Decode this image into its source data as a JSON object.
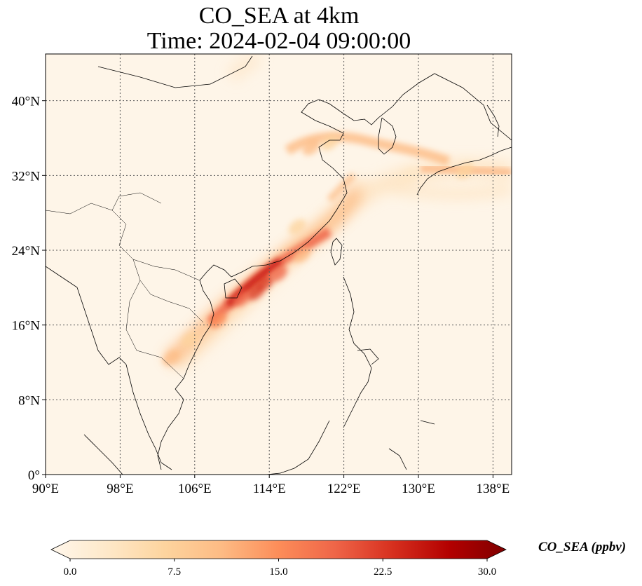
{
  "title": {
    "line1": "CO_SEA at 4km",
    "line2": "Time: 2024-02-04 09:00:00"
  },
  "map": {
    "lon_range": [
      90,
      140
    ],
    "lat_range": [
      0,
      45
    ],
    "lon_ticks": [
      {
        "value": 90,
        "label": "90°E"
      },
      {
        "value": 98,
        "label": "98°E"
      },
      {
        "value": 106,
        "label": "106°E"
      },
      {
        "value": 114,
        "label": "114°E"
      },
      {
        "value": 122,
        "label": "122°E"
      },
      {
        "value": 130,
        "label": "130°E"
      },
      {
        "value": 138,
        "label": "138°E"
      }
    ],
    "lat_ticks": [
      {
        "value": 0,
        "label": "0°"
      },
      {
        "value": 8,
        "label": "8°N"
      },
      {
        "value": 16,
        "label": "16°N"
      },
      {
        "value": 24,
        "label": "24°N"
      },
      {
        "value": 32,
        "label": "32°N"
      },
      {
        "value": 40,
        "label": "40°N"
      }
    ],
    "gridlines": "dotted",
    "plumes": [
      {
        "lon": 113.5,
        "lat": 20.5,
        "level": 24
      },
      {
        "lon": 112.5,
        "lat": 19.5,
        "level": 22
      },
      {
        "lon": 115.0,
        "lat": 21.5,
        "level": 20
      },
      {
        "lon": 111.0,
        "lat": 18.8,
        "level": 18
      },
      {
        "lon": 108.5,
        "lat": 16.5,
        "level": 16
      },
      {
        "lon": 117.5,
        "lat": 23.5,
        "level": 13
      },
      {
        "lon": 105.5,
        "lat": 14.5,
        "level": 9
      },
      {
        "lon": 103.5,
        "lat": 12.5,
        "level": 11
      },
      {
        "lon": 118.5,
        "lat": 35.0,
        "level": 11
      },
      {
        "lon": 120.5,
        "lat": 35.5,
        "level": 8
      },
      {
        "lon": 117.0,
        "lat": 26.5,
        "level": 7
      },
      {
        "lon": 135.0,
        "lat": 32.5,
        "level": 6
      },
      {
        "lon": 129.0,
        "lat": 32.0,
        "level": 4
      }
    ]
  },
  "colorbar": {
    "min": 0.0,
    "max": 30.0,
    "extend": "both",
    "colormap": [
      "#fff7ec",
      "#fee8c8",
      "#fdd49e",
      "#fdbb84",
      "#fc8d59",
      "#ef6548",
      "#d7301f",
      "#b30000",
      "#7f0000"
    ],
    "ticks": [
      {
        "value": 0.0,
        "label": "0.0"
      },
      {
        "value": 7.5,
        "label": "7.5"
      },
      {
        "value": 15.0,
        "label": "15.0"
      },
      {
        "value": 22.5,
        "label": "22.5"
      },
      {
        "value": 30.0,
        "label": "30.0"
      }
    ],
    "label": "CO_SEA (ppbv)"
  }
}
